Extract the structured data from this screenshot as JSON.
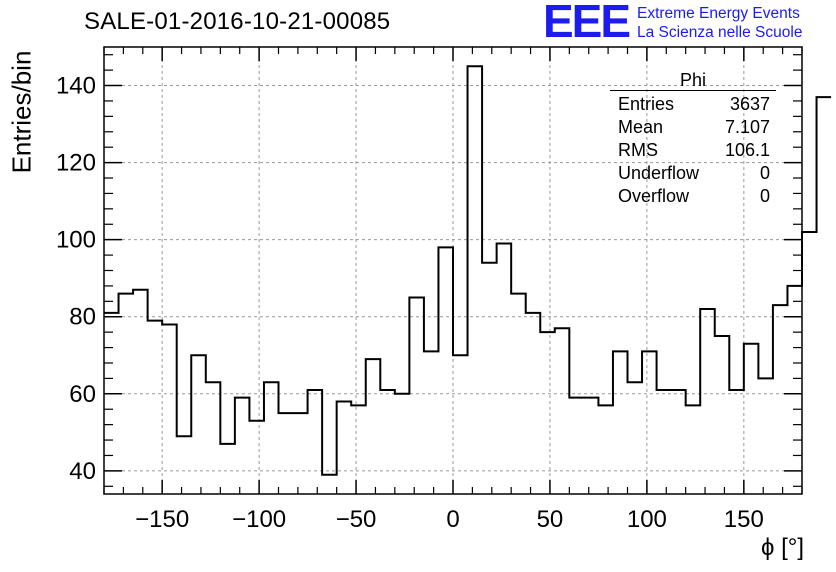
{
  "header": {
    "title": "SALE-01-2016-10-21-00085",
    "logo": "EEE",
    "logo_line1": "Extreme Energy Events",
    "logo_line2": "La Scienza nelle Scuole"
  },
  "stats": {
    "title": "Phi",
    "rows": [
      {
        "label": "Entries",
        "value": "3637"
      },
      {
        "label": "Mean",
        "value": "7.107"
      },
      {
        "label": "RMS",
        "value": "106.1"
      },
      {
        "label": "Underflow",
        "value": "0"
      },
      {
        "label": "Overflow",
        "value": "0"
      }
    ]
  },
  "chart_data": {
    "type": "histogram",
    "title": "SALE-01-2016-10-21-00085",
    "xlabel": "ϕ [°]",
    "ylabel": "Entries/bin",
    "xlim": [
      -180,
      180
    ],
    "ylim": [
      34,
      150
    ],
    "bin_width": 7.5,
    "x_ticks": [
      -150,
      -100,
      -50,
      0,
      50,
      100,
      150
    ],
    "y_ticks": [
      40,
      60,
      80,
      100,
      120,
      140
    ],
    "grid": true,
    "values": [
      81,
      86,
      87,
      79,
      78,
      49,
      70,
      63,
      47,
      59,
      53,
      63,
      55,
      55,
      61,
      39,
      58,
      57,
      69,
      61,
      60,
      85,
      71,
      98,
      70,
      145,
      94,
      99,
      86,
      81,
      76,
      77,
      59,
      59,
      57,
      71,
      63,
      71,
      61,
      61,
      57,
      82,
      75,
      61,
      73,
      64,
      83,
      88,
      102,
      137
    ],
    "line_color": "#000000",
    "grid_color": "#9a9a9a"
  }
}
